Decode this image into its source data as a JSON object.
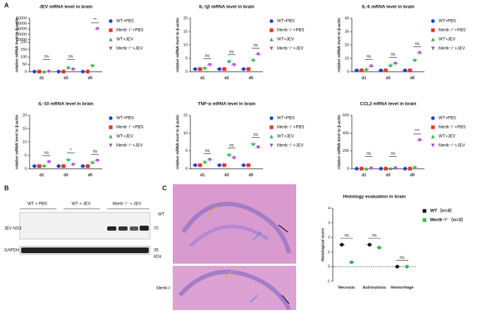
{
  "panels": {
    "a": "A",
    "b": "B",
    "c": "C"
  },
  "blot": {
    "groups": [
      "WT + PBS",
      "WT + JEV",
      "Mertk⁻/⁻ + JEV"
    ],
    "rows": [
      "JEV NS3",
      "GAPDH"
    ],
    "markers": [
      "70",
      "35"
    ],
    "unit": "kDa"
  },
  "micrographs": {
    "labels": [
      "WT",
      "Mertk-/-"
    ]
  },
  "chart_data": [
    {
      "type": "dot",
      "title": "JEV mRNA level in  brain",
      "ylabel": "relative mRNA level to β-actin",
      "categories": [
        "d1",
        "d3",
        "d5"
      ],
      "series": [
        {
          "name": "WT+PBS",
          "color": "#1f3fd0",
          "values": [
            1,
            1,
            1
          ]
        },
        {
          "name": "Mertk⁻/⁻+PBS",
          "color": "#e8312a",
          "values": [
            1,
            1,
            1
          ]
        },
        {
          "name": "WT+JEV",
          "color": "#2fb84a",
          "values": [
            1,
            30,
            45
          ]
        },
        {
          "name": "Mertk⁻/⁻+JEV",
          "color": "#a64fd8",
          "values": [
            1,
            15,
            30000
          ]
        }
      ],
      "ylim": [
        0,
        50000
      ],
      "ybreak": [
        200,
        10000
      ],
      "yticks": [
        0,
        50,
        100,
        150,
        200,
        10000,
        20000,
        30000,
        40000,
        50000
      ],
      "annotations": [
        "ns",
        "ns",
        "**"
      ]
    },
    {
      "type": "dot",
      "title": "IL-1β mRNA level in  brain",
      "ylabel": "relative mRNA level to β-actin",
      "categories": [
        "d1",
        "d3",
        "d5"
      ],
      "series": [
        {
          "name": "WT+PBS",
          "color": "#1f3fd0",
          "values": [
            1,
            1,
            1
          ]
        },
        {
          "name": "Mertk⁻/⁻+PBS",
          "color": "#e8312a",
          "values": [
            1,
            1,
            1
          ]
        },
        {
          "name": "WT+JEV",
          "color": "#2fb84a",
          "values": [
            1.5,
            4,
            4.5
          ]
        },
        {
          "name": "Mertk⁻/⁻+JEV",
          "color": "#a64fd8",
          "values": [
            2.5,
            2.5,
            6.5
          ]
        }
      ],
      "ylim": [
        0,
        20
      ],
      "yticks": [
        0,
        5,
        10,
        15,
        20
      ],
      "annotations": [
        "ns",
        "ns",
        "ns"
      ]
    },
    {
      "type": "dot",
      "title": "IL-6 mRNA level in  brain",
      "ylabel": "relative mRNA level to β-actin",
      "categories": [
        "d1",
        "d3",
        "d5"
      ],
      "series": [
        {
          "name": "WT+PBS",
          "color": "#1f3fd0",
          "values": [
            1,
            1,
            1
          ]
        },
        {
          "name": "Mertk⁻/⁻+PBS",
          "color": "#e8312a",
          "values": [
            1,
            1,
            1
          ]
        },
        {
          "name": "WT+JEV",
          "color": "#2fb84a",
          "values": [
            2,
            5,
            9
          ]
        },
        {
          "name": "Mertk⁻/⁻+JEV",
          "color": "#a64fd8",
          "values": [
            4,
            6,
            14
          ]
        }
      ],
      "ylim": [
        0,
        40
      ],
      "yticks": [
        0,
        10,
        20,
        30,
        40
      ],
      "annotations": [
        "ns",
        "ns",
        "ns"
      ]
    },
    {
      "type": "dot",
      "title": "IL-10 mRNA level in  brain",
      "ylabel": "relative mRNA level to β-actin",
      "categories": [
        "d1",
        "d3",
        "d5"
      ],
      "series": [
        {
          "name": "WT+PBS",
          "color": "#1f3fd0",
          "values": [
            1,
            1,
            1
          ]
        },
        {
          "name": "Mertk⁻/⁻+PBS",
          "color": "#e8312a",
          "values": [
            1,
            1,
            1
          ]
        },
        {
          "name": "WT+JEV",
          "color": "#2fb84a",
          "values": [
            1.2,
            3.5,
            2.5
          ]
        },
        {
          "name": "Mertk⁻/⁻+JEV",
          "color": "#a64fd8",
          "values": [
            2.5,
            1.5,
            3
          ]
        }
      ],
      "ylim": [
        0,
        20
      ],
      "yticks": [
        0,
        5,
        10,
        15,
        20
      ],
      "annotations": [
        "ns",
        "*",
        "ns"
      ]
    },
    {
      "type": "dot",
      "title": "TNF-α mRNA level in  brain",
      "ylabel": "relative mRNA level to β-actin",
      "categories": [
        "d1",
        "d3",
        "d5"
      ],
      "series": [
        {
          "name": "WT+PBS",
          "color": "#1f3fd0",
          "values": [
            1,
            1,
            1
          ]
        },
        {
          "name": "Mertk⁻/⁻+PBS",
          "color": "#e8312a",
          "values": [
            1,
            1,
            1
          ]
        },
        {
          "name": "WT+JEV",
          "color": "#2fb84a",
          "values": [
            2,
            4,
            7
          ]
        },
        {
          "name": "Mertk⁻/⁻+JEV",
          "color": "#a64fd8",
          "values": [
            2.5,
            3,
            6
          ]
        }
      ],
      "ylim": [
        0,
        15
      ],
      "yticks": [
        0,
        5,
        10,
        15
      ],
      "annotations": [
        "ns",
        "ns",
        "ns"
      ]
    },
    {
      "type": "dot",
      "title": "CCL2 mRNA level in  brain",
      "ylabel": "relative mRNA level to β-actin",
      "categories": [
        "d1",
        "d3",
        "d5"
      ],
      "series": [
        {
          "name": "WT+PBS",
          "color": "#1f3fd0",
          "values": [
            1,
            1,
            1
          ]
        },
        {
          "name": "Mertk⁻/⁻+PBS",
          "color": "#e8312a",
          "values": [
            1,
            1,
            1
          ]
        },
        {
          "name": "WT+JEV",
          "color": "#2fb84a",
          "values": [
            2,
            5,
            20
          ]
        },
        {
          "name": "Mertk⁻/⁻+JEV",
          "color": "#a64fd8",
          "values": [
            3,
            6,
            320
          ]
        }
      ],
      "ylim": [
        0,
        600
      ],
      "yticks": [
        0,
        200,
        400,
        600
      ],
      "annotations": [
        "ns",
        "ns",
        "***"
      ]
    },
    {
      "type": "dot",
      "title": "Histology evaluation in  brain",
      "ylabel": "Histological score",
      "categories": [
        "Necrosis",
        "Astrocytosis",
        "Hemorrhage"
      ],
      "series": [
        {
          "name": "WT（n=4）",
          "color": "#111111",
          "values": [
            1.5,
            1.5,
            0
          ]
        },
        {
          "name": "Mertk⁻/⁻（n=3）",
          "color": "#2fb84a",
          "values": [
            0.3,
            1.3,
            0
          ]
        }
      ],
      "ylim": [
        -1,
        4
      ],
      "yticks": [
        -1,
        0,
        1,
        2,
        3,
        4
      ],
      "annotations": [
        "ns",
        "ns",
        "ns"
      ]
    }
  ]
}
